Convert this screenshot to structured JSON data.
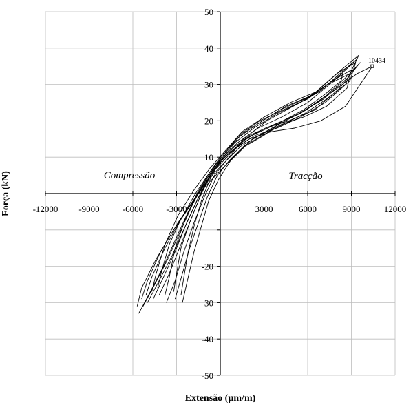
{
  "chart_data": {
    "type": "line",
    "title": "",
    "xlabel": "Extensão (µm/m)",
    "ylabel": "Força (kN)",
    "xlim": [
      -12000,
      12000
    ],
    "ylim": [
      -50,
      50
    ],
    "x_ticks": [
      -12000,
      -9000,
      -6000,
      -3000,
      3000,
      6000,
      9000,
      12000
    ],
    "x_tick_labels": [
      "-12000",
      "-9000",
      "-6000",
      "-3000",
      "3000",
      "6000",
      "9000",
      "12000"
    ],
    "y_ticks": [
      -50,
      -40,
      -30,
      -20,
      10,
      20,
      30,
      40,
      50
    ],
    "y_tick_labels": [
      "-50",
      "-40",
      "-30",
      "-20",
      "10",
      "20",
      "30",
      "40",
      "50"
    ],
    "grid": true,
    "annotations": {
      "compression": "Compressão",
      "traction": "Tracção",
      "peak_label": "10434"
    },
    "peak_point": {
      "x": 10434,
      "y": 35
    },
    "series": [
      {
        "x": [
          -5600,
          -4800,
          -3900,
          -3000,
          -2200,
          -1400,
          -600,
          200,
          1200,
          2600,
          4200,
          6000,
          7800,
          9400,
          8500,
          6800,
          5000,
          3200,
          1600,
          400,
          -800,
          -2000,
          -3200,
          -4400,
          -5400,
          -5700
        ],
        "y": [
          -33,
          -27,
          -20,
          -12,
          -5,
          1,
          6,
          10,
          14,
          18,
          21,
          25,
          31,
          37,
          34,
          28,
          24,
          20,
          15,
          9,
          4,
          -3,
          -10,
          -18,
          -26,
          -31
        ]
      },
      {
        "x": [
          -5300,
          -4500,
          -3600,
          -2700,
          -1900,
          -1100,
          -300,
          600,
          1700,
          3100,
          4700,
          6500,
          8200,
          9600,
          8900,
          7300,
          5500,
          3700,
          2000,
          700,
          -500,
          -1700,
          -2900,
          -4100,
          -5000,
          -5400
        ],
        "y": [
          -31,
          -25,
          -18,
          -10,
          -3,
          3,
          8,
          11,
          15,
          18,
          20,
          23,
          29,
          36,
          33,
          27,
          22,
          19,
          16,
          11,
          6,
          -1,
          -8,
          -16,
          -24,
          -29
        ]
      },
      {
        "x": [
          -5000,
          -4200,
          -3300,
          -2400,
          -1600,
          -800,
          0,
          900,
          2000,
          3500,
          5100,
          6900,
          8600,
          10434,
          9400,
          7700,
          5900,
          4000,
          2200,
          900,
          -300,
          -1500,
          -2700,
          -3800,
          -4700,
          -5100
        ],
        "y": [
          -30,
          -24,
          -17,
          -9,
          -2,
          4,
          9,
          12,
          15,
          17,
          18,
          20,
          24,
          35,
          33,
          28,
          23,
          19,
          15,
          10,
          5,
          0,
          -7,
          -15,
          -23,
          -28
        ]
      },
      {
        "x": [
          -4600,
          -3900,
          -3100,
          -2300,
          -1500,
          -700,
          100,
          1000,
          2200,
          3800,
          5400,
          7100,
          8800,
          9500,
          8300,
          6600,
          4800,
          3000,
          1500,
          400,
          -700,
          -1800,
          -2900,
          -3800,
          -4400,
          -4700
        ],
        "y": [
          -29,
          -23,
          -16,
          -8,
          -1,
          5,
          9,
          13,
          16,
          19,
          22,
          26,
          32,
          38,
          34,
          28,
          25,
          21,
          17,
          12,
          7,
          1,
          -6,
          -14,
          -22,
          -27
        ]
      },
      {
        "x": [
          -4200,
          -3500,
          -2800,
          -2000,
          -1300,
          -500,
          300,
          1200,
          2400,
          3900,
          5500,
          7200,
          8900,
          9300,
          8000,
          6300,
          4500,
          2900,
          1400,
          300,
          -700,
          -1700,
          -2700,
          -3500,
          -4000,
          -4300
        ],
        "y": [
          -28,
          -22,
          -15,
          -7,
          0,
          6,
          10,
          13,
          16,
          18,
          21,
          25,
          31,
          36,
          33,
          27,
          24,
          20,
          16,
          11,
          6,
          0,
          -7,
          -14,
          -21,
          -26
        ]
      },
      {
        "x": [
          -3700,
          -3100,
          -2500,
          -1800,
          -1100,
          -400,
          400,
          1400,
          2700,
          4200,
          5700,
          7300,
          8700,
          9000,
          7700,
          6000,
          4300,
          2700,
          1300,
          200,
          -700,
          -1600,
          -2400,
          -3100,
          -3500,
          -3800
        ],
        "y": [
          -30,
          -24,
          -16,
          -8,
          -1,
          5,
          9,
          13,
          16,
          19,
          21,
          24,
          29,
          34,
          31,
          26,
          23,
          20,
          16,
          11,
          6,
          0,
          -7,
          -15,
          -23,
          -28
        ]
      },
      {
        "x": [
          -3100,
          -2600,
          -2100,
          -1500,
          -900,
          -200,
          600,
          1600,
          2900,
          4300,
          5800,
          7300,
          8600,
          8900,
          7400,
          5800,
          4100,
          2500,
          1100,
          100,
          -700,
          -1400,
          -2100,
          -2700,
          -3000,
          -3200
        ],
        "y": [
          -29,
          -22,
          -15,
          -8,
          -1,
          5,
          9,
          13,
          16,
          19,
          22,
          26,
          30,
          33,
          30,
          26,
          23,
          19,
          15,
          10,
          5,
          -1,
          -8,
          -15,
          -22,
          -27
        ]
      },
      {
        "x": [
          -2600,
          -2200,
          -1800,
          -1300,
          -800,
          -100,
          700,
          1700,
          3000,
          4300,
          5700,
          7100,
          8300,
          8400,
          7000,
          5500,
          3900,
          2300,
          1000,
          0,
          -700,
          -1300,
          -1800,
          -2200,
          -2500,
          -2700
        ],
        "y": [
          -30,
          -23,
          -16,
          -9,
          -2,
          4,
          9,
          13,
          16,
          20,
          23,
          27,
          31,
          33,
          29,
          25,
          22,
          18,
          14,
          9,
          4,
          -2,
          -9,
          -16,
          -23,
          -28
        ]
      }
    ]
  }
}
